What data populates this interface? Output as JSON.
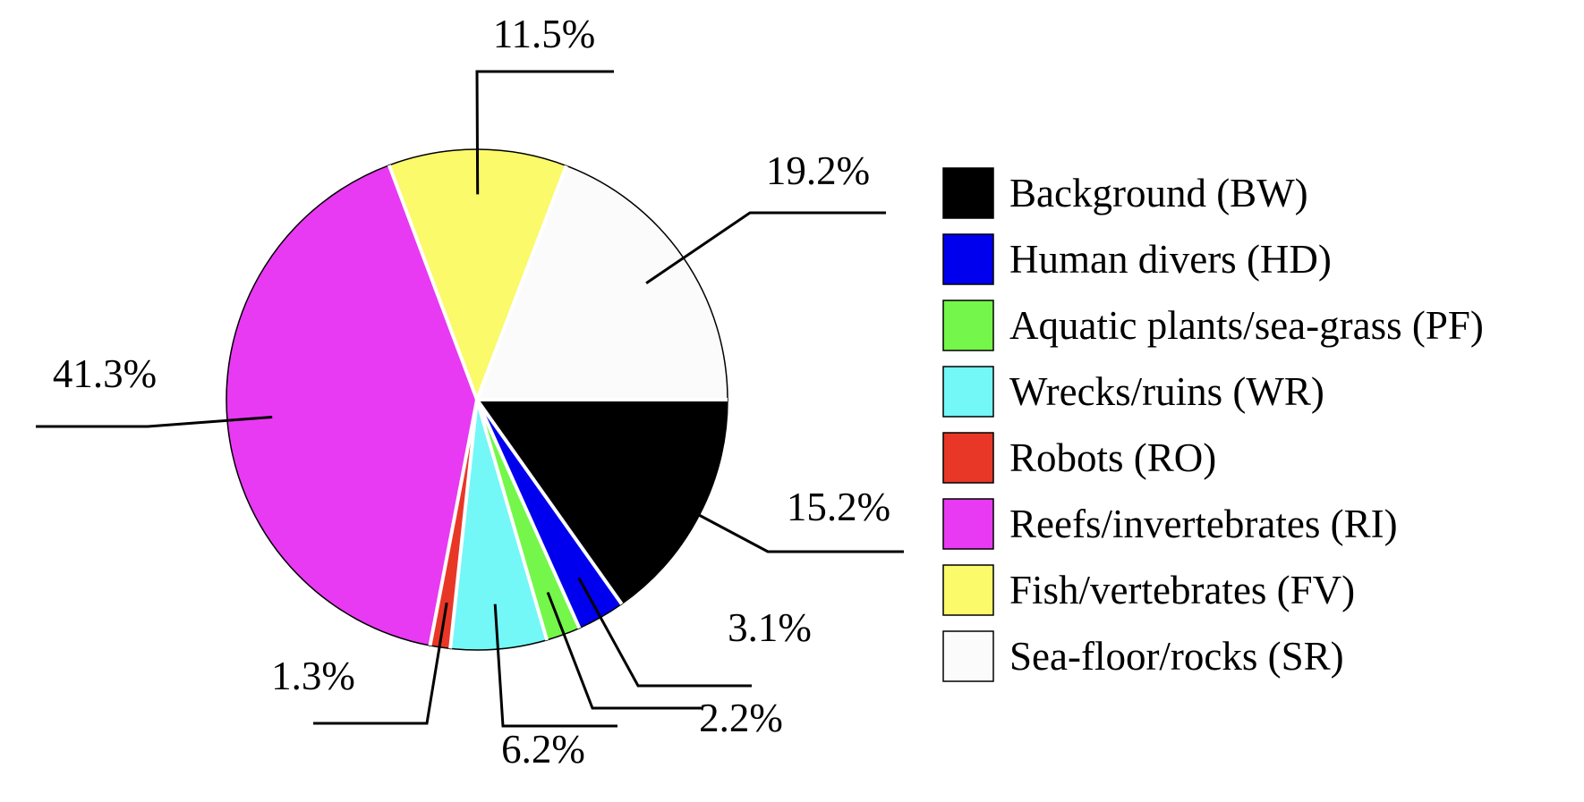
{
  "chart_data": {
    "type": "pie",
    "title": "",
    "legend_position": "right",
    "slices": [
      {
        "label": "Background (BW)",
        "value": 15.2,
        "value_label": "15.2%",
        "color": "#000000"
      },
      {
        "label": "Human divers (HD)",
        "value": 3.1,
        "value_label": "3.1%",
        "color": "#0000ee"
      },
      {
        "label": "Aquatic plants/sea-grass (PF)",
        "value": 2.2,
        "value_label": "2.2%",
        "color": "#74f74a"
      },
      {
        "label": "Wrecks/ruins (WR)",
        "value": 6.2,
        "value_label": "6.2%",
        "color": "#74f7f7"
      },
      {
        "label": "Robots (RO)",
        "value": 1.3,
        "value_label": "1.3%",
        "color": "#e83727"
      },
      {
        "label": "Reefs/invertebrates (RI)",
        "value": 41.3,
        "value_label": "41.3%",
        "color": "#e83af2"
      },
      {
        "label": "Fish/vertebrates (FV)",
        "value": 11.5,
        "value_label": "11.5%",
        "color": "#fafa6a"
      },
      {
        "label": "Sea-floor/rocks (SR)",
        "value": 19.2,
        "value_label": "19.2%",
        "color": "#fbfbfb"
      }
    ]
  }
}
